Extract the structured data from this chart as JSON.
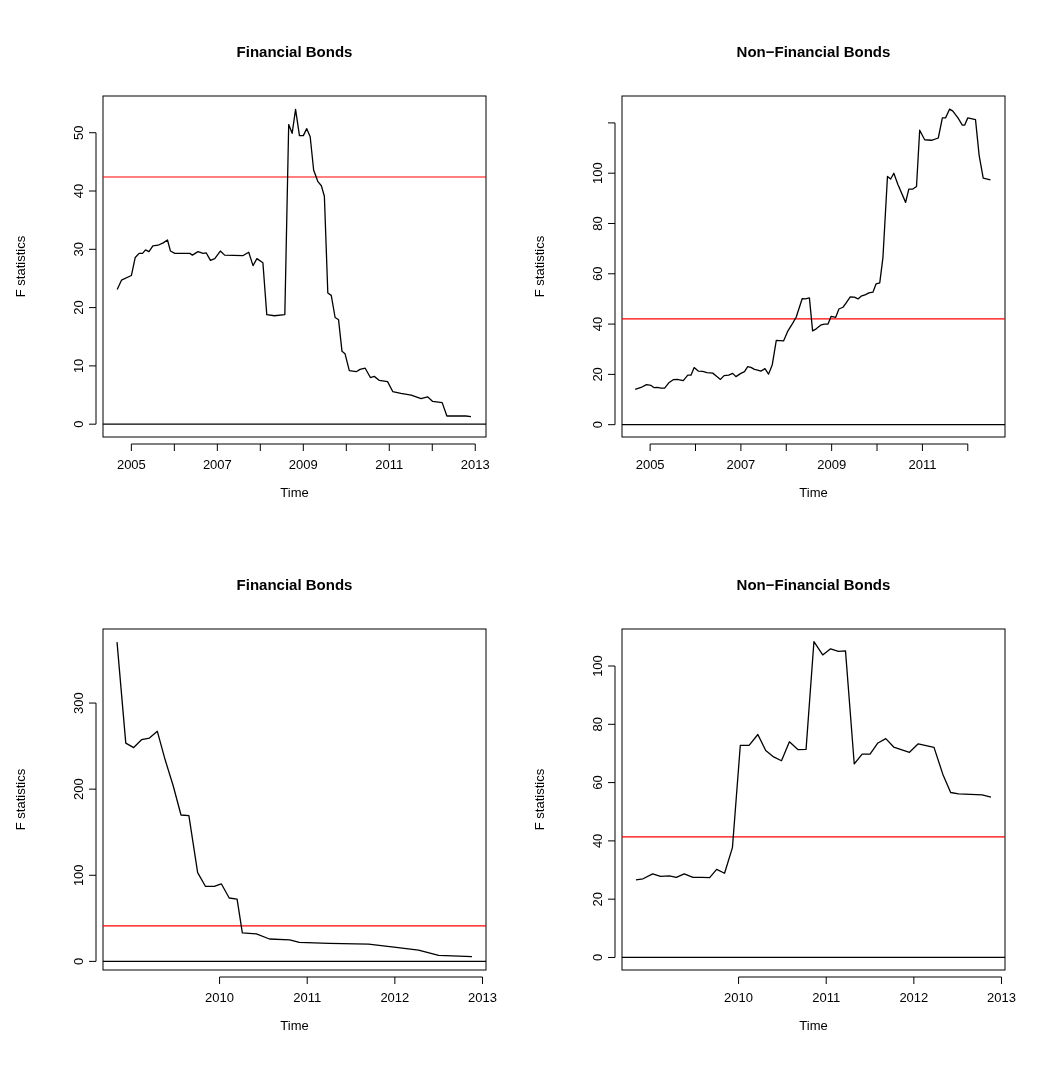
{
  "chart_data": [
    {
      "type": "line",
      "title": "Financial Bonds",
      "xlabel": "Time",
      "ylabel": "F statistics",
      "xlim": [
        2004.34,
        2013.25
      ],
      "ylim": [
        -2.2,
        56.3
      ],
      "xticks": [
        2005,
        {
          "value": 2006,
          "label": null
        },
        2007,
        {
          "value": 2008,
          "label": null
        },
        2009,
        {
          "value": 2010,
          "label": null
        },
        2011,
        {
          "value": 2012,
          "label": null
        },
        2013
      ],
      "yticks": [
        0,
        10,
        20,
        30,
        40,
        50
      ],
      "series": [
        {
          "color": "#000000",
          "x": [
            2004.67,
            2004.77,
            2005.0,
            2005.09,
            2005.18,
            2005.26,
            2005.33,
            2005.41,
            2005.5,
            2005.62,
            2005.74,
            2005.84,
            2005.91,
            2006.01,
            2006.36,
            2006.42,
            2006.55,
            2006.67,
            2006.74,
            2006.84,
            2006.94,
            2007.07,
            2007.17,
            2007.59,
            2007.73,
            2007.83,
            2007.92,
            2008.06,
            2008.15,
            2008.33,
            2008.57,
            2008.66,
            2008.74,
            2008.82,
            2008.91,
            2009.0,
            2009.08,
            2009.16,
            2009.24,
            2009.34,
            2009.42,
            2009.49,
            2009.57,
            2009.65,
            2009.74,
            2009.82,
            2009.9,
            2009.97,
            2010.07,
            2010.23,
            2010.32,
            2010.44,
            2010.56,
            2010.65,
            2010.77,
            2010.96,
            2011.08,
            2011.27,
            2011.51,
            2011.74,
            2011.89,
            2012.01,
            2012.23,
            2012.34,
            2012.78,
            2012.9
          ],
          "values": [
            23.1,
            24.7,
            25.5,
            28.6,
            29.3,
            29.3,
            29.9,
            29.6,
            30.6,
            30.7,
            31.1,
            31.6,
            29.7,
            29.3,
            29.3,
            29.0,
            29.6,
            29.3,
            29.4,
            28.1,
            28.4,
            29.7,
            29.0,
            28.9,
            29.5,
            27.2,
            28.4,
            27.7,
            18.8,
            18.6,
            18.8,
            51.4,
            49.9,
            54.0,
            49.5,
            49.5,
            50.7,
            49.3,
            43.6,
            41.6,
            40.9,
            39.1,
            22.5,
            22.1,
            18.3,
            17.9,
            12.5,
            12.1,
            9.2,
            9.0,
            9.4,
            9.6,
            8.0,
            8.2,
            7.5,
            7.3,
            5.6,
            5.3,
            5.0,
            4.4,
            4.7,
            3.9,
            3.7,
            1.4,
            1.4,
            1.3
          ]
        }
      ],
      "ref_lines": [
        {
          "axis": "y",
          "value": 42.4,
          "color": "#ff0000"
        },
        {
          "axis": "y",
          "value": 0,
          "color": "#000000"
        }
      ]
    },
    {
      "type": "line",
      "title": "Non−Financial Bonds",
      "xlabel": "Time",
      "ylabel": "F statistics",
      "xlim": [
        2004.38,
        2012.82
      ],
      "ylim": [
        -4.9,
        130.7
      ],
      "xticks": [
        2005,
        {
          "value": 2006,
          "label": null
        },
        2007,
        {
          "value": 2008,
          "label": null
        },
        2009,
        {
          "value": 2010,
          "label": null
        },
        2011,
        {
          "value": 2012,
          "label": null
        }
      ],
      "yticks": [
        0,
        20,
        40,
        60,
        80,
        100,
        {
          "value": 120,
          "label": null
        }
      ],
      "series": [
        {
          "color": "#000000",
          "x": [
            2004.67,
            2004.8,
            2004.92,
            2005.02,
            2005.09,
            2005.16,
            2005.24,
            2005.32,
            2005.42,
            2005.51,
            2005.6,
            2005.73,
            2005.83,
            2005.9,
            2005.97,
            2006.06,
            2006.16,
            2006.25,
            2006.38,
            2006.47,
            2006.55,
            2006.63,
            2006.73,
            2006.82,
            2006.89,
            2007.0,
            2007.08,
            2007.15,
            2007.22,
            2007.3,
            2007.37,
            2007.44,
            2007.53,
            2007.61,
            2007.69,
            2007.78,
            2007.94,
            2008.03,
            2008.14,
            2008.22,
            2008.35,
            2008.42,
            2008.51,
            2008.58,
            2008.66,
            2008.77,
            2008.84,
            2008.92,
            2008.99,
            2009.09,
            2009.16,
            2009.25,
            2009.32,
            2009.41,
            2009.5,
            2009.58,
            2009.65,
            2009.75,
            2009.82,
            2009.91,
            2009.98,
            2010.06,
            2010.13,
            2010.23,
            2010.3,
            2010.37,
            2010.46,
            2010.63,
            2010.7,
            2010.79,
            2010.87,
            2010.94,
            2011.05,
            2011.2,
            2011.35,
            2011.44,
            2011.51,
            2011.6,
            2011.67,
            2011.78,
            2011.88,
            2011.93,
            2012.0,
            2012.17,
            2012.25,
            2012.34,
            2012.5
          ],
          "values": [
            14.0,
            14.8,
            15.9,
            15.6,
            14.7,
            14.8,
            14.5,
            14.5,
            16.8,
            17.9,
            18.0,
            17.5,
            19.7,
            19.7,
            22.7,
            21.3,
            21.2,
            20.7,
            20.5,
            19.2,
            18.0,
            19.5,
            19.7,
            20.4,
            19.1,
            20.4,
            21.1,
            23.1,
            22.8,
            22.0,
            21.7,
            21.3,
            22.3,
            20.1,
            23.7,
            33.5,
            33.3,
            37.1,
            40.3,
            42.8,
            50.1,
            50.0,
            50.4,
            37.3,
            38.1,
            39.7,
            40.0,
            40.0,
            43.1,
            42.7,
            46.0,
            46.7,
            48.4,
            50.8,
            50.7,
            50.0,
            51.1,
            51.7,
            52.4,
            52.7,
            56.0,
            56.4,
            66.4,
            98.7,
            97.7,
            100.0,
            95.5,
            88.4,
            93.7,
            93.7,
            94.7,
            117.1,
            113.3,
            113.1,
            114.0,
            122.0,
            122.0,
            125.5,
            124.7,
            122.1,
            119.1,
            119.1,
            122.0,
            121.3,
            107.1,
            98.0,
            97.3
          ]
        }
      ],
      "ref_lines": [
        {
          "axis": "y",
          "value": 42.1,
          "color": "#ff0000"
        },
        {
          "axis": "y",
          "value": 0,
          "color": "#000000"
        }
      ]
    },
    {
      "type": "line",
      "title": "Financial Bonds",
      "xlabel": "Time",
      "ylabel": "F statistics",
      "xlim": [
        2008.67,
        2013.04
      ],
      "ylim": [
        -10,
        386
      ],
      "xticks": [
        2010,
        2011,
        2012,
        2013
      ],
      "yticks": [
        0,
        100,
        200,
        300
      ],
      "series": [
        {
          "color": "#000000",
          "x": [
            2008.83,
            2008.93,
            2009.02,
            2009.11,
            2009.2,
            2009.29,
            2009.38,
            2009.47,
            2009.56,
            2009.65,
            2009.75,
            2009.84,
            2009.94,
            2010.02,
            2010.11,
            2010.2,
            2010.26,
            2010.42,
            2010.57,
            2010.8,
            2010.91,
            2011.25,
            2011.7,
            2011.99,
            2012.27,
            2012.5,
            2012.88
          ],
          "values": [
            370.7,
            253.5,
            248.3,
            257.4,
            259.4,
            267.2,
            233.8,
            204.3,
            170.0,
            169.2,
            103.1,
            87.0,
            87.0,
            90.1,
            73.6,
            72.4,
            33,
            32,
            26,
            25,
            22,
            21,
            20,
            16.5,
            13,
            7,
            5.5
          ]
        }
      ],
      "ref_lines": [
        {
          "axis": "y",
          "value": 41.3,
          "color": "#ff0000"
        },
        {
          "axis": "y",
          "value": 0,
          "color": "#000000"
        }
      ]
    },
    {
      "type": "line",
      "title": "Non−Financial Bonds",
      "xlabel": "Time",
      "ylabel": "F statistics",
      "xlim": [
        2008.67,
        2013.04
      ],
      "ylim": [
        -4.3,
        112.7
      ],
      "xticks": [
        2010,
        2011,
        2012,
        2013
      ],
      "yticks": [
        0,
        20,
        40,
        60,
        80,
        100
      ],
      "series": [
        {
          "color": "#000000",
          "x": [
            2008.83,
            2008.91,
            2009.02,
            2009.11,
            2009.21,
            2009.29,
            2009.38,
            2009.48,
            2009.58,
            2009.67,
            2009.75,
            2009.84,
            2009.93,
            2010.02,
            2010.12,
            2010.22,
            2010.31,
            2010.4,
            2010.49,
            2010.58,
            2010.68,
            2010.77,
            2010.86,
            2010.96,
            2011.05,
            2011.14,
            2011.22,
            2011.32,
            2011.41,
            2011.5,
            2011.59,
            2011.68,
            2011.77,
            2011.95,
            2012.05,
            2012.23,
            2012.33,
            2012.42,
            2012.51,
            2012.78,
            2012.88
          ],
          "values": [
            26.6,
            27.0,
            28.7,
            27.8,
            28.0,
            27.5,
            28.7,
            27.5,
            27.5,
            27.4,
            30.2,
            28.9,
            37.7,
            72.8,
            72.8,
            76.5,
            71.0,
            68.8,
            67.5,
            74.0,
            71.3,
            71.4,
            108.4,
            103.8,
            105.9,
            105.0,
            105.2,
            66.4,
            69.8,
            69.8,
            73.6,
            75.1,
            72.2,
            70.4,
            73.3,
            72.1,
            62.9,
            56.6,
            56.1,
            55.8,
            55.0
          ]
        }
      ],
      "ref_lines": [
        {
          "axis": "y",
          "value": 41.4,
          "color": "#ff0000"
        },
        {
          "axis": "y",
          "value": 0,
          "color": "#000000"
        }
      ]
    }
  ]
}
